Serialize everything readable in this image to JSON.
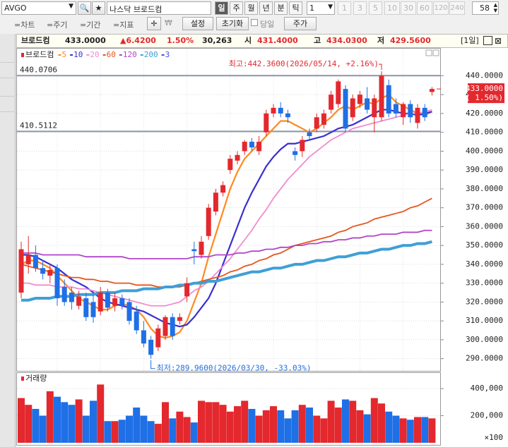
{
  "toolbar": {
    "symbol": "AVGO",
    "market_name": "나스닥 브로드컴",
    "periods": [
      "일",
      "주",
      "월",
      "년",
      "분",
      "틱"
    ],
    "interval": "1",
    "intervals": [
      "1",
      "3",
      "5",
      "10",
      "30",
      "60",
      "120",
      "240"
    ],
    "count": "58",
    "menus": [
      "=차트",
      "=주기",
      "=기간",
      "=지표"
    ],
    "buttons": [
      "설정",
      "초기화"
    ],
    "checkbox": "당일",
    "price_button": "주가"
  },
  "info": {
    "name": "브로드컴",
    "price": "433.0000",
    "change": "▲6.4200",
    "change_pct": "1.50%",
    "volume": "30,263",
    "open_label": "시",
    "open": "431.4000",
    "high_label": "고",
    "high": "434.0300",
    "low_label": "저",
    "low": "429.5600",
    "period": "[1일]"
  },
  "chart_data": [
    {
      "type": "candlestick",
      "name": "브로드컴",
      "up_color": "#e3282e",
      "down_color": "#1f6fe6",
      "open": [
        325,
        340,
        345,
        338,
        334,
        338,
        328,
        325,
        318,
        322,
        320,
        315,
        325,
        318,
        322,
        320,
        315,
        305,
        300,
        296,
        302,
        312,
        310,
        323,
        348,
        345,
        355,
        368,
        378,
        390,
        395,
        400,
        405,
        400,
        410,
        420,
        423,
        420,
        400,
        400,
        410,
        412,
        414,
        422,
        425,
        433,
        418,
        425,
        428,
        418,
        418,
        435,
        425,
        418,
        425,
        415,
        423,
        431.4
      ],
      "high": [
        352,
        355,
        350,
        342,
        340,
        340,
        332,
        328,
        326,
        325,
        324,
        328,
        327,
        325,
        324,
        322,
        318,
        310,
        302,
        308,
        313,
        314,
        314,
        333,
        352,
        355,
        372,
        380,
        384,
        398,
        400,
        406,
        407,
        408,
        422,
        425,
        426,
        422,
        402,
        408,
        412,
        420,
        422,
        432,
        438,
        435,
        430,
        432,
        434,
        430,
        442.36,
        438,
        428,
        426,
        427,
        425,
        425,
        434.03
      ],
      "low": [
        322,
        335,
        336,
        332,
        330,
        318,
        318,
        316,
        316,
        310,
        309,
        313,
        315,
        315,
        316,
        308,
        303,
        296,
        289.96,
        294,
        300,
        300,
        308,
        320,
        340,
        343,
        353,
        366,
        376,
        388,
        393,
        398,
        400,
        398,
        408,
        418,
        418,
        415,
        395,
        397,
        406,
        410,
        412,
        420,
        423,
        410,
        416,
        423,
        420,
        410,
        416,
        418,
        418,
        414,
        415,
        412,
        416,
        429.56
      ],
      "close": [
        348,
        345,
        338,
        335,
        337,
        322,
        320,
        320,
        323,
        312,
        312,
        325,
        317,
        322,
        318,
        310,
        305,
        298,
        292,
        306,
        312,
        302,
        312,
        330,
        347,
        352,
        370,
        378,
        382,
        396,
        398,
        405,
        402,
        405,
        420,
        423,
        420,
        418,
        398,
        406,
        408,
        418,
        420,
        430,
        437,
        412,
        428,
        430,
        422,
        428,
        440,
        420,
        420,
        425,
        418,
        423,
        418,
        433
      ],
      "series": [
        {
          "name": "5",
          "color": "#ff8a1e",
          "values": [
            340,
            342,
            342,
            340,
            338,
            334,
            330,
            326,
            322,
            320,
            318,
            316,
            316,
            318,
            319,
            318,
            316,
            312,
            306,
            302,
            301,
            302,
            304,
            310,
            320,
            330,
            344,
            356,
            368,
            380,
            389,
            396,
            400,
            404,
            408,
            412,
            416,
            416,
            414,
            412,
            410,
            412,
            415,
            418,
            422,
            424,
            422,
            424,
            426,
            425,
            428,
            430,
            426,
            424,
            422,
            420,
            419,
            421
          ]
        },
        {
          "name": "10",
          "color": "#3a2fd0",
          "values": [
            345,
            345,
            344,
            342,
            340,
            338,
            335,
            332,
            330,
            328,
            325,
            322,
            320,
            319,
            318,
            317,
            316,
            315,
            313,
            311,
            309,
            308,
            307,
            308,
            312,
            317,
            322,
            330,
            340,
            350,
            360,
            370,
            378,
            385,
            392,
            397,
            401,
            404,
            404,
            405,
            406,
            407,
            408,
            410,
            412,
            413,
            414,
            416,
            418,
            420,
            422,
            422,
            421,
            420,
            420,
            419,
            420,
            421
          ]
        },
        {
          "name": "20",
          "color": "#f08cd0",
          "values": [
            330,
            330,
            329,
            329,
            329,
            328,
            328,
            328,
            327,
            327,
            326,
            325,
            324,
            323,
            322,
            321,
            320,
            319,
            318,
            318,
            318,
            319,
            320,
            323,
            326,
            328,
            331,
            335,
            339,
            343,
            348,
            353,
            358,
            364,
            369,
            375,
            380,
            385,
            389,
            393,
            397,
            400,
            403,
            406,
            408,
            410,
            412,
            413,
            414,
            415,
            416,
            417,
            418,
            419,
            420,
            420,
            421,
            422
          ]
        },
        {
          "name": "60",
          "color": "#e4561c",
          "values": [
            340,
            339,
            338,
            337,
            336,
            335,
            334,
            333,
            333,
            332,
            332,
            331,
            331,
            330,
            330,
            330,
            329,
            329,
            329,
            328,
            328,
            328,
            328,
            329,
            330,
            331,
            332,
            333,
            334,
            336,
            337,
            339,
            340,
            342,
            343,
            345,
            346,
            348,
            350,
            351,
            352,
            353,
            354,
            355,
            357,
            358,
            360,
            361,
            362,
            364,
            365,
            366,
            367,
            368,
            370,
            371,
            373,
            375
          ]
        },
        {
          "name": "120",
          "color": "#b045c8",
          "values": [
            346,
            346,
            346,
            345,
            345,
            345,
            345,
            345,
            345,
            344,
            344,
            344,
            344,
            344,
            344,
            343,
            343,
            343,
            343,
            343,
            343,
            343,
            343,
            343,
            344,
            344,
            344,
            345,
            345,
            345,
            346,
            346,
            347,
            347,
            348,
            348,
            349,
            349,
            350,
            350,
            351,
            351,
            352,
            352,
            353,
            353,
            354,
            354,
            355,
            355,
            356,
            356,
            356,
            357,
            357,
            357,
            358,
            358
          ]
        },
        {
          "name": "200",
          "color": "#3f9fd6",
          "values": [
            321,
            321,
            322,
            322,
            322,
            323,
            323,
            323,
            324,
            324,
            324,
            325,
            325,
            325,
            326,
            326,
            326,
            327,
            327,
            327,
            328,
            328,
            329,
            329,
            330,
            330,
            331,
            331,
            332,
            333,
            334,
            335,
            336,
            336,
            337,
            338,
            338,
            339,
            340,
            340,
            341,
            342,
            342,
            343,
            344,
            344,
            345,
            346,
            346,
            347,
            348,
            348,
            349,
            350,
            350,
            351,
            351,
            352
          ]
        }
      ],
      "legend_extra": {
        "name": "3",
        "color": "#4b4bd8"
      },
      "hlines": [
        440.0706,
        410.5112
      ],
      "high_annotation": "최고:442.3600(2026/05/14, +2.16%)",
      "low_annotation": "최저:289.9600(2026/03/30, -33.03%)",
      "last_label": "433.0000",
      "last_change_label": "( 1.50%)",
      "ylim": [
        285,
        454
      ],
      "yticks": [
        {
          "value": 440,
          "label": "440.0000"
        },
        {
          "value": 430,
          "label": "430.0000"
        },
        {
          "value": 420,
          "label": "420.0000"
        },
        {
          "value": 410,
          "label": "410.0000"
        },
        {
          "value": 400,
          "label": "400.0000"
        },
        {
          "value": 390,
          "label": "390.0000"
        },
        {
          "value": 380,
          "label": "380.0000"
        },
        {
          "value": 370,
          "label": "370.0000"
        },
        {
          "value": 360,
          "label": "360.0000"
        },
        {
          "value": 350,
          "label": "350.0000"
        },
        {
          "value": 340,
          "label": "340.0000"
        },
        {
          "value": 330,
          "label": "330.0000"
        },
        {
          "value": 320,
          "label": "320.0000"
        },
        {
          "value": 310,
          "label": "310.0000"
        },
        {
          "value": 300,
          "label": "300.0000"
        },
        {
          "value": 290,
          "label": "290.0000"
        }
      ],
      "grid": true
    },
    {
      "type": "bar",
      "title": "거래량",
      "title_color": "#e3282e",
      "values": [
        330000,
        280000,
        250000,
        200000,
        380000,
        340000,
        300000,
        280000,
        320000,
        200000,
        310000,
        430000,
        160000,
        160000,
        170000,
        200000,
        260000,
        200000,
        160000,
        140000,
        300000,
        180000,
        230000,
        190000,
        150000,
        310000,
        300000,
        300000,
        280000,
        230000,
        270000,
        310000,
        250000,
        200000,
        240000,
        270000,
        240000,
        180000,
        240000,
        280000,
        260000,
        200000,
        180000,
        310000,
        260000,
        320000,
        310000,
        240000,
        210000,
        330000,
        290000,
        230000,
        200000,
        180000,
        170000,
        190000,
        190000,
        180000
      ],
      "unit_label": "×100",
      "ylim": [
        0,
        510000
      ],
      "yticks": [
        {
          "value": 400000,
          "label": "400,000"
        },
        {
          "value": 200000,
          "label": "200,000"
        }
      ],
      "grid": true
    }
  ]
}
